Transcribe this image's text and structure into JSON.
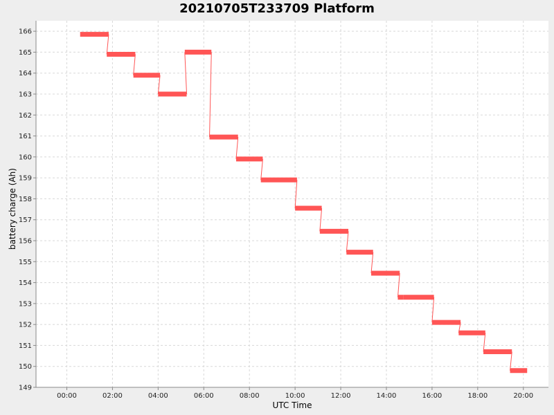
{
  "chart_data": {
    "type": "line",
    "title": "20210705T233709 Platform",
    "xlabel": "UTC Time",
    "ylabel": "battery charge (Ah)",
    "grid": true,
    "x_ticks": [
      "00:00",
      "02:00",
      "04:00",
      "06:00",
      "08:00",
      "10:00",
      "12:00",
      "14:00",
      "16:00",
      "18:00",
      "20:00"
    ],
    "x_range_hours": [
      -1.35,
      21.1
    ],
    "ylim": [
      149,
      166.5
    ],
    "y_ticks": [
      149,
      150,
      151,
      152,
      153,
      154,
      155,
      156,
      157,
      158,
      159,
      160,
      161,
      162,
      163,
      164,
      165,
      166
    ],
    "colors": {
      "series": "#ff5555",
      "grid": "#d8d8d8",
      "plot_bg": "#ffffff",
      "page_bg": "#eeeeee"
    },
    "series": [
      {
        "segments": [
          {
            "start": "00:35",
            "end": "01:50",
            "value": 165.85
          },
          {
            "start": "01:45",
            "end": "03:00",
            "value": 164.9
          },
          {
            "start": "02:55",
            "end": "04:05",
            "value": 163.9
          },
          {
            "start": "04:00",
            "end": "05:15",
            "value": 163.0
          },
          {
            "start": "05:10",
            "end": "06:20",
            "value": 165.0
          },
          {
            "start": "06:15",
            "end": "07:30",
            "value": 160.95
          },
          {
            "start": "07:25",
            "end": "08:35",
            "value": 159.9
          },
          {
            "start": "08:30",
            "end": "10:05",
            "value": 158.9
          },
          {
            "start": "10:00",
            "end": "11:10",
            "value": 157.55
          },
          {
            "start": "11:05",
            "end": "12:20",
            "value": 156.45
          },
          {
            "start": "12:15",
            "end": "13:25",
            "value": 155.45
          },
          {
            "start": "13:20",
            "end": "14:35",
            "value": 154.45
          },
          {
            "start": "14:30",
            "end": "14:45",
            "value": 153.3
          },
          {
            "start": "14:45",
            "end": "16:05",
            "value": 153.3
          },
          {
            "start": "16:00",
            "end": "17:15",
            "value": 152.1
          },
          {
            "start": "17:10",
            "end": "18:20",
            "value": 151.6
          },
          {
            "start": "18:15",
            "end": "19:30",
            "value": 150.7
          },
          {
            "start": "19:25",
            "end": "20:10",
            "value": 149.8
          }
        ]
      }
    ]
  }
}
